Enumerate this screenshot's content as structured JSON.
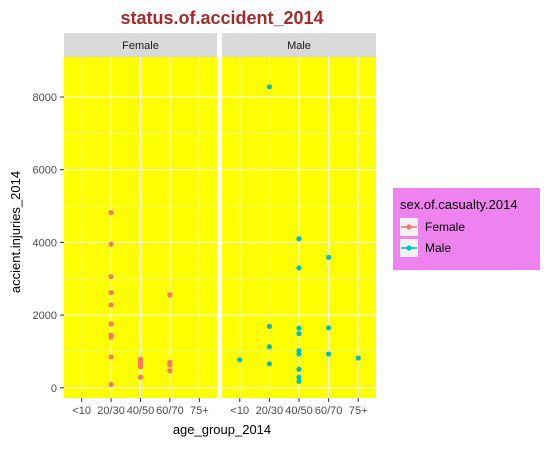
{
  "chart_data": {
    "type": "scatter",
    "title": "status.of.accident_2014",
    "xlabel": "age_group_2014",
    "ylabel": "accient.injuries_2014",
    "x_categories": [
      "<10",
      "20/30",
      "40/50",
      "60/70",
      "75+"
    ],
    "yticks": [
      0,
      2000,
      4000,
      6000,
      8000
    ],
    "ylim": [
      -280,
      9100
    ],
    "grid": true,
    "panel_background": "#FFFF00",
    "strip_background": "#D9D9D9",
    "title_color": "#A52A2A",
    "legend_background": "#EE82EE",
    "legend_title": "sex.of.casualty.2014",
    "legend_placement": "right",
    "facets": [
      {
        "label": "Female",
        "series": "Female",
        "color": "#F8766D",
        "points": [
          {
            "x": "20/30",
            "y": 4820
          },
          {
            "x": "20/30",
            "y": 3950
          },
          {
            "x": "20/30",
            "y": 3060
          },
          {
            "x": "20/30",
            "y": 2620
          },
          {
            "x": "20/30",
            "y": 2280
          },
          {
            "x": "20/30",
            "y": 1760
          },
          {
            "x": "20/30",
            "y": 1450
          },
          {
            "x": "20/30",
            "y": 1390
          },
          {
            "x": "20/30",
            "y": 850
          },
          {
            "x": "20/30",
            "y": 90
          },
          {
            "x": "40/50",
            "y": 790
          },
          {
            "x": "40/50",
            "y": 720
          },
          {
            "x": "40/50",
            "y": 640
          },
          {
            "x": "40/50",
            "y": 580
          },
          {
            "x": "40/50",
            "y": 290
          },
          {
            "x": "60/70",
            "y": 2560
          },
          {
            "x": "60/70",
            "y": 700
          },
          {
            "x": "60/70",
            "y": 630
          },
          {
            "x": "60/70",
            "y": 470
          }
        ]
      },
      {
        "label": "Male",
        "series": "Male",
        "color": "#00BFC4",
        "points": [
          {
            "x": "<10",
            "y": 770
          },
          {
            "x": "20/30",
            "y": 8280
          },
          {
            "x": "20/30",
            "y": 1690
          },
          {
            "x": "20/30",
            "y": 1130
          },
          {
            "x": "20/30",
            "y": 660
          },
          {
            "x": "40/50",
            "y": 4100
          },
          {
            "x": "40/50",
            "y": 3300
          },
          {
            "x": "40/50",
            "y": 1640
          },
          {
            "x": "40/50",
            "y": 1490
          },
          {
            "x": "40/50",
            "y": 1020
          },
          {
            "x": "40/50",
            "y": 930
          },
          {
            "x": "40/50",
            "y": 510
          },
          {
            "x": "40/50",
            "y": 290
          },
          {
            "x": "40/50",
            "y": 180
          },
          {
            "x": "60/70",
            "y": 3590
          },
          {
            "x": "60/70",
            "y": 1650
          },
          {
            "x": "60/70",
            "y": 930
          },
          {
            "x": "75+",
            "y": 820
          }
        ]
      }
    ],
    "legend": [
      {
        "label": "Female",
        "color": "#F8766D"
      },
      {
        "label": "Male",
        "color": "#00BFC4"
      }
    ]
  }
}
